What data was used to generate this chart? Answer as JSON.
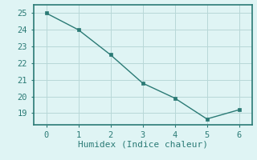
{
  "x": [
    0,
    1,
    2,
    3,
    4,
    5,
    6
  ],
  "y": [
    25.0,
    24.0,
    22.5,
    20.8,
    19.9,
    18.65,
    19.2
  ],
  "line_color": "#2a7a75",
  "marker_color": "#2a7a75",
  "background_color": "#dff4f4",
  "grid_color": "#b8d8d8",
  "xlabel": "Humidex (Indice chaleur)",
  "xlim": [
    -0.4,
    6.4
  ],
  "ylim": [
    18.3,
    25.5
  ],
  "yticks": [
    19,
    20,
    21,
    22,
    23,
    24,
    25
  ],
  "xticks": [
    0,
    1,
    2,
    3,
    4,
    5,
    6
  ],
  "tick_color": "#2a7a75",
  "label_color": "#2a7a75",
  "spine_color": "#2a7a75",
  "font_size": 7.5,
  "xlabel_fontsize": 8
}
